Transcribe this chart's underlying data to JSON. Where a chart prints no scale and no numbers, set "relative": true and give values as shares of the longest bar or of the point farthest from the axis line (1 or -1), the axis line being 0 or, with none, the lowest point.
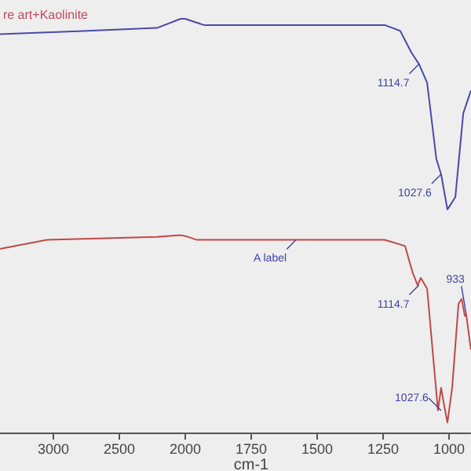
{
  "chart_data": [
    {
      "type": "line",
      "relative": true,
      "xlim": [
        3405,
        2000
      ],
      "xticks": [
        3000,
        2500,
        {
          "value": 2000,
          "label": null
        }
      ],
      "line_style": "solid",
      "series": [
        {
          "color": "#4a4aa8",
          "x": [
            3405,
            2810,
            2214,
            2036,
            2000
          ],
          "values": [
            0.963,
            0.97,
            0.978,
            1,
            1
          ]
        },
        {
          "color": "#c04848",
          "x": [
            3405,
            3048,
            2214,
            2036,
            2000
          ],
          "values": [
            0.445,
            0.467,
            0.474,
            0.478,
            0.476
          ]
        }
      ],
      "annotations": [
        "re art+Kaolinite"
      ]
    },
    {
      "type": "line",
      "relative": true,
      "xlabel": "cm-1",
      "xlim": [
        2000,
        917
      ],
      "xticks": [
        2000,
        1750,
        1500,
        1250,
        1000
      ],
      "line_style": "solid",
      "series": [
        {
          "color": "#4a4aa8",
          "x": [
            2000,
            1929,
            1512,
            1244,
            1185,
            1143,
            1113,
            1083,
            1048,
            1030,
            1006,
            976,
            946,
            917
          ],
          "values": [
            1,
            0.985,
            0.985,
            0.985,
            0.971,
            0.919,
            0.89,
            0.846,
            0.662,
            0.625,
            0.54,
            0.57,
            0.772,
            0.827
          ]
        },
        {
          "color": "#c04848",
          "x": [
            2000,
            1958,
            1512,
            1244,
            1167,
            1137,
            1119,
            1107,
            1083,
            1060,
            1042,
            1030,
            1018,
            1006,
            988,
            964,
            952,
            940,
            935,
            917
          ],
          "values": [
            0.476,
            0.467,
            0.467,
            0.467,
            0.452,
            0.386,
            0.357,
            0.375,
            0.349,
            0.184,
            0.055,
            0.11,
            0.066,
            0.026,
            0.11,
            0.313,
            0.324,
            0.283,
            0.287,
            0.202
          ]
        }
      ],
      "annotations": [
        {
          "text": "1114.7",
          "x": 1114.7,
          "y": 0.89
        },
        {
          "text": "1027.6",
          "x": 1030,
          "y": 0.625
        },
        {
          "text": "A label",
          "x": 1580,
          "y": 0.467
        },
        {
          "text": "1114.7",
          "x": 1114.7,
          "y": 0.357
        },
        {
          "text": "1027.6",
          "x": 1030,
          "y": 0.055
        },
        {
          "text": "933",
          "x": 935,
          "y": 0.287
        }
      ]
    }
  ]
}
